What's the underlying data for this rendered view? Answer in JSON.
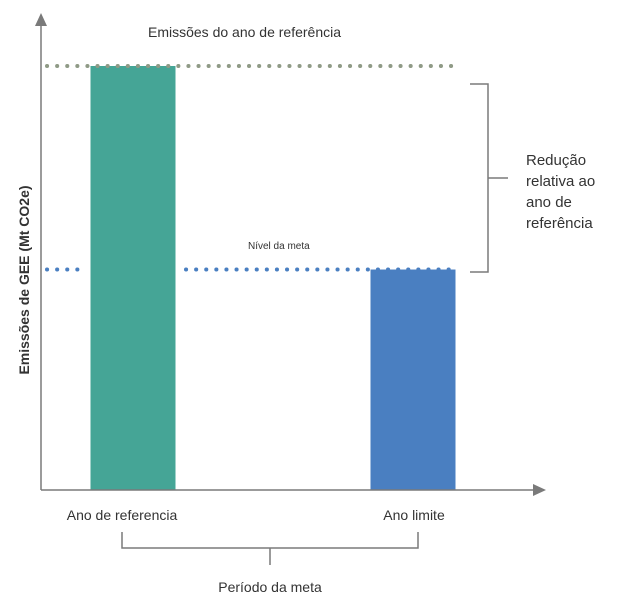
{
  "chart_data": {
    "type": "bar",
    "title": "",
    "ylabel": "Emissões de GEE (Mt CO2e)",
    "xlabel": "",
    "categories": [
      "Ano de referencia",
      "Ano limite"
    ],
    "values": [
      100,
      52
    ],
    "colors": [
      "#45a596",
      "#4a7fc1"
    ],
    "ylim": [
      0,
      100
    ],
    "grid": false,
    "reference_line": {
      "label": "Emissões do ano de referência",
      "value": 100,
      "color": "#8f9a86",
      "style": "dotted"
    },
    "target_line": {
      "label": "Nível da meta",
      "value": 52,
      "color": "#4a7fc1",
      "style": "dotted"
    },
    "annotations": {
      "reduction": [
        "Redução",
        "relativa ao",
        "ano de",
        "referência"
      ],
      "period": "Período da meta"
    }
  }
}
